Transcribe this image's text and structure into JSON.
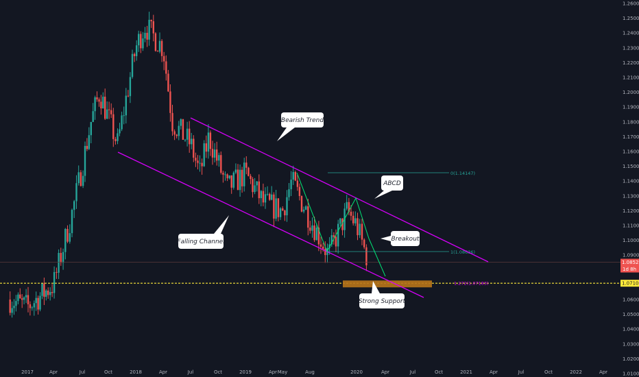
{
  "chart_data": {
    "type": "candlestick",
    "xlabel": "",
    "ylabel": "",
    "ylim": [
      1.005,
      1.26
    ],
    "x_ticks": [
      "2017",
      "Apr",
      "Jul",
      "Oct",
      "2018",
      "Apr",
      "Jul",
      "Oct",
      "2019",
      "Apr",
      "May",
      "Aug",
      "2020",
      "Apr",
      "Jul",
      "Oct",
      "2021",
      "Apr",
      "Jul",
      "Oct",
      "2022",
      "Apr"
    ],
    "y_ticks": [
      "1.26000",
      "1.25000",
      "1.24000",
      "1.23000",
      "1.22000",
      "1.21000",
      "1.20000",
      "1.19000",
      "1.18000",
      "1.17000",
      "1.16000",
      "1.15000",
      "1.14000",
      "1.13000",
      "1.12000",
      "1.11000",
      "1.10000",
      "1.09000",
      "1.08000",
      "1.07000",
      "1.06000",
      "1.05000",
      "1.04000",
      "1.03000",
      "1.02000",
      "1.01000"
    ],
    "price_path": [
      {
        "t": "2016-11",
        "p": 1.06
      },
      {
        "t": "2017-01",
        "p": 1.055
      },
      {
        "t": "2017-03",
        "p": 1.065
      },
      {
        "t": "2017-04",
        "p": 1.07
      },
      {
        "t": "2017-06",
        "p": 1.12
      },
      {
        "t": "2017-08",
        "p": 1.18
      },
      {
        "t": "2017-09",
        "p": 1.2
      },
      {
        "t": "2017-11",
        "p": 1.165
      },
      {
        "t": "2018-01",
        "p": 1.23
      },
      {
        "t": "2018-02",
        "p": 1.245
      },
      {
        "t": "2018-04",
        "p": 1.23
      },
      {
        "t": "2018-05",
        "p": 1.18
      },
      {
        "t": "2018-07",
        "p": 1.165
      },
      {
        "t": "2018-08",
        "p": 1.145
      },
      {
        "t": "2018-09",
        "p": 1.17
      },
      {
        "t": "2018-11",
        "p": 1.135
      },
      {
        "t": "2019-01",
        "p": 1.145
      },
      {
        "t": "2019-03",
        "p": 1.125
      },
      {
        "t": "2019-05",
        "p": 1.12
      },
      {
        "t": "2019-06",
        "p": 1.14
      },
      {
        "t": "2019-08",
        "p": 1.115
      },
      {
        "t": "2019-10",
        "p": 1.09
      },
      {
        "t": "2019-12",
        "p": 1.12
      },
      {
        "t": "2020-01",
        "p": 1.11
      },
      {
        "t": "2020-02",
        "p": 1.09
      }
    ],
    "last_price": "1.08521",
    "timer_label": "1d 8h",
    "support_price": "1.07103",
    "abcd_target_label": "0(1.14147)",
    "abcd_point_label": "1(1.08636)",
    "support_zone_label": "1.272(1.07183)",
    "annotations": [
      {
        "name": "bearish-trend",
        "text": "Bearish Trend"
      },
      {
        "name": "abcd",
        "text": "ABCD"
      },
      {
        "name": "falling-channel",
        "text": "Falling Channel"
      },
      {
        "name": "breakout",
        "text": "Breakout"
      },
      {
        "name": "strong-support",
        "text": "Strong Support"
      }
    ],
    "grid": false,
    "colors": {
      "background": "#131722",
      "up": "#26a69a",
      "down": "#ef5350",
      "channel": "#d500f9",
      "abcd": "#00e676",
      "support": "#ffeb3b",
      "zone": "#b8741a",
      "fib": "#26a69a",
      "axis_text": "#b2b5be",
      "price_badge": "#ef5350",
      "support_badge": "#ffeb3b"
    }
  }
}
